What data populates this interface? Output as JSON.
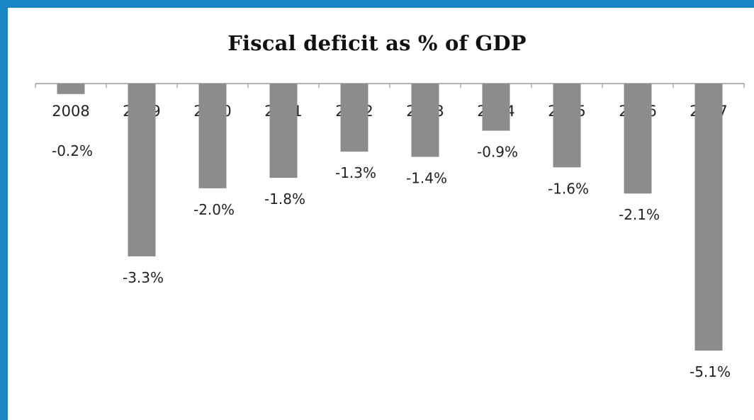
{
  "chart_data": {
    "type": "bar",
    "title": "Fiscal deficit as % of GDP",
    "xlabel": "",
    "ylabel": "",
    "categories": [
      "2008",
      "2009",
      "2010",
      "2011",
      "2012",
      "2013",
      "2014",
      "2015",
      "2016",
      "2017"
    ],
    "values": [
      -0.2,
      -3.3,
      -2.0,
      -1.8,
      -1.3,
      -1.4,
      -0.9,
      -1.6,
      -2.1,
      -5.1
    ],
    "data_labels": [
      "-0.2%",
      "-3.3%",
      "-2.0%",
      "-1.8%",
      "-1.3%",
      "-1.4%",
      "-0.9%",
      "-1.6%",
      "-2.1%",
      "-5.1%"
    ],
    "ylim": [
      -5.1,
      0
    ],
    "grid": false,
    "legend": "none",
    "bar_color": "#8c8c8c",
    "frame_color": "#1b86c7"
  }
}
